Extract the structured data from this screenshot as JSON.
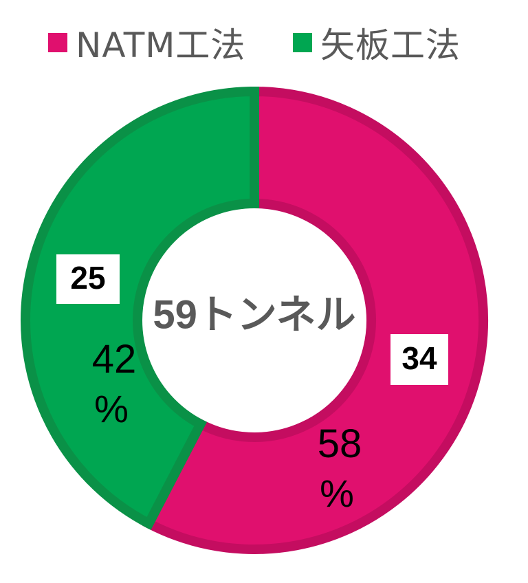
{
  "chart_data": {
    "type": "pie",
    "donut": true,
    "center_label": "59トンネル",
    "series": [
      {
        "name": "NATM工法",
        "value": 34,
        "percent_text": "58",
        "percent_sign": "%",
        "color": "#e0106e",
        "border": "#c40d60"
      },
      {
        "name": "矢板工法",
        "value": 25,
        "percent_text": "42",
        "percent_sign": "%",
        "color": "#00a651",
        "border": "#0a9147"
      }
    ],
    "legend_position": "top"
  }
}
